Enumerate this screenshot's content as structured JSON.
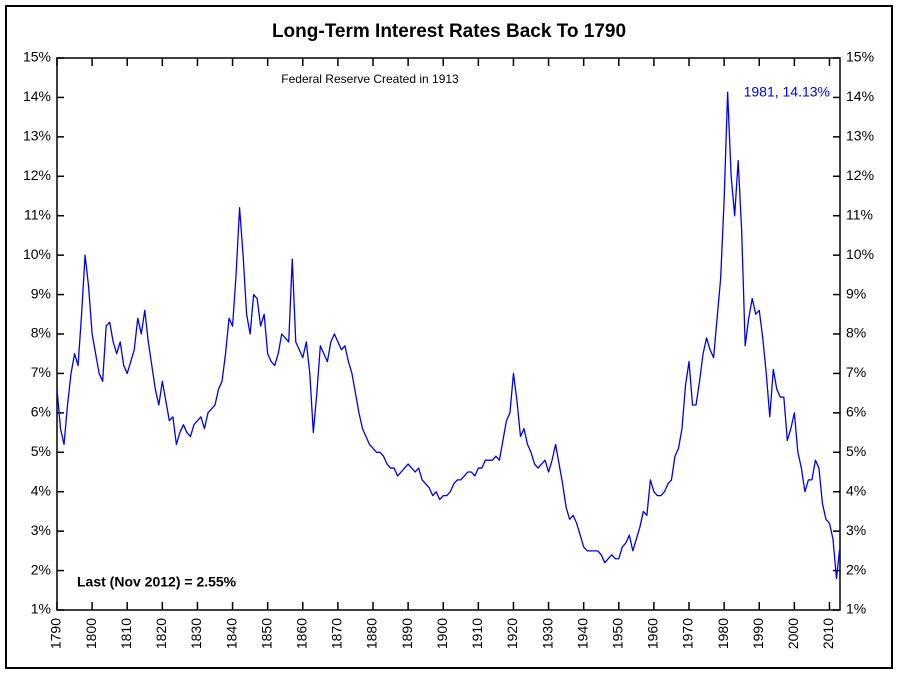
{
  "chart_data": {
    "type": "line",
    "title": "Long-Term Interest Rates Back To 1790",
    "annotations": [
      "Federal Reserve Created in 1913",
      "1981, 14.13%",
      "Last (Nov 2012) = 2.55%"
    ],
    "color": "#0000ee",
    "xlim": [
      1790,
      2013
    ],
    "xticks": [
      1790,
      1800,
      1810,
      1820,
      1830,
      1840,
      1850,
      1860,
      1870,
      1880,
      1890,
      1900,
      1910,
      1920,
      1930,
      1940,
      1950,
      1960,
      1970,
      1980,
      1990,
      2000,
      2010
    ],
    "ylim": [
      1,
      15
    ],
    "yticks": [
      {
        "value": 1,
        "label": "1%"
      },
      {
        "value": 2,
        "label": "2%"
      },
      {
        "value": 3,
        "label": "3%"
      },
      {
        "value": 4,
        "label": "4%"
      },
      {
        "value": 5,
        "label": "5%"
      },
      {
        "value": 6,
        "label": "6%"
      },
      {
        "value": 7,
        "label": "7%"
      },
      {
        "value": 8,
        "label": "8%"
      },
      {
        "value": 9,
        "label": "9%"
      },
      {
        "value": 10,
        "label": "10%"
      },
      {
        "value": 11,
        "label": "11%"
      },
      {
        "value": 12,
        "label": "12%"
      },
      {
        "value": 13,
        "label": "13%"
      },
      {
        "value": 14,
        "label": "14%"
      },
      {
        "value": 15,
        "label": "15%"
      }
    ],
    "x": [
      1790,
      1791,
      1792,
      1793,
      1794,
      1795,
      1796,
      1797,
      1798,
      1799,
      1800,
      1801,
      1802,
      1803,
      1804,
      1805,
      1806,
      1807,
      1808,
      1809,
      1810,
      1811,
      1812,
      1813,
      1814,
      1815,
      1816,
      1817,
      1818,
      1819,
      1820,
      1821,
      1822,
      1823,
      1824,
      1825,
      1826,
      1827,
      1828,
      1829,
      1830,
      1831,
      1832,
      1833,
      1834,
      1835,
      1836,
      1837,
      1838,
      1839,
      1840,
      1841,
      1842,
      1843,
      1844,
      1845,
      1846,
      1847,
      1848,
      1849,
      1850,
      1851,
      1852,
      1853,
      1854,
      1855,
      1856,
      1857,
      1858,
      1859,
      1860,
      1861,
      1862,
      1863,
      1864,
      1865,
      1866,
      1867,
      1868,
      1869,
      1870,
      1871,
      1872,
      1873,
      1874,
      1875,
      1876,
      1877,
      1878,
      1879,
      1880,
      1881,
      1882,
      1883,
      1884,
      1885,
      1886,
      1887,
      1888,
      1889,
      1890,
      1891,
      1892,
      1893,
      1894,
      1895,
      1896,
      1897,
      1898,
      1899,
      1900,
      1901,
      1902,
      1903,
      1904,
      1905,
      1906,
      1907,
      1908,
      1909,
      1910,
      1911,
      1912,
      1913,
      1914,
      1915,
      1916,
      1917,
      1918,
      1919,
      1920,
      1921,
      1922,
      1923,
      1924,
      1925,
      1926,
      1927,
      1928,
      1929,
      1930,
      1931,
      1932,
      1933,
      1934,
      1935,
      1936,
      1937,
      1938,
      1939,
      1940,
      1941,
      1942,
      1943,
      1944,
      1945,
      1946,
      1947,
      1948,
      1949,
      1950,
      1951,
      1952,
      1953,
      1954,
      1955,
      1956,
      1957,
      1958,
      1959,
      1960,
      1961,
      1962,
      1963,
      1964,
      1965,
      1966,
      1967,
      1968,
      1969,
      1970,
      1971,
      1972,
      1973,
      1974,
      1975,
      1976,
      1977,
      1978,
      1979,
      1980,
      1981,
      1982,
      1983,
      1984,
      1985,
      1986,
      1987,
      1988,
      1989,
      1990,
      1991,
      1992,
      1993,
      1994,
      1995,
      1996,
      1997,
      1998,
      1999,
      2000,
      2001,
      2002,
      2003,
      2004,
      2005,
      2006,
      2007,
      2008,
      2009,
      2010,
      2011,
      2012,
      2012.9
    ],
    "values": [
      6.6,
      5.6,
      5.2,
      6.2,
      7.0,
      7.5,
      7.2,
      8.5,
      10.0,
      9.2,
      8.0,
      7.5,
      7.0,
      6.8,
      8.2,
      8.3,
      7.8,
      7.5,
      7.8,
      7.2,
      7.0,
      7.3,
      7.6,
      8.4,
      8.0,
      8.6,
      7.8,
      7.2,
      6.6,
      6.2,
      6.8,
      6.3,
      5.8,
      5.9,
      5.2,
      5.5,
      5.7,
      5.5,
      5.4,
      5.7,
      5.8,
      5.9,
      5.6,
      6.0,
      6.1,
      6.2,
      6.6,
      6.8,
      7.5,
      8.4,
      8.2,
      9.5,
      11.2,
      10.0,
      8.5,
      8.0,
      9.0,
      8.9,
      8.2,
      8.5,
      7.5,
      7.3,
      7.2,
      7.5,
      8.0,
      7.9,
      7.8,
      9.9,
      7.8,
      7.6,
      7.4,
      7.8,
      7.0,
      5.5,
      6.5,
      7.7,
      7.5,
      7.3,
      7.8,
      8.0,
      7.8,
      7.6,
      7.7,
      7.3,
      7.0,
      6.5,
      6.0,
      5.6,
      5.4,
      5.2,
      5.1,
      5.0,
      5.0,
      4.9,
      4.7,
      4.6,
      4.6,
      4.4,
      4.5,
      4.6,
      4.7,
      4.6,
      4.5,
      4.6,
      4.3,
      4.2,
      4.1,
      3.9,
      4.0,
      3.8,
      3.9,
      3.9,
      4.0,
      4.2,
      4.3,
      4.3,
      4.4,
      4.5,
      4.5,
      4.4,
      4.6,
      4.6,
      4.8,
      4.8,
      4.8,
      4.9,
      4.8,
      5.3,
      5.8,
      6.0,
      7.0,
      6.3,
      5.4,
      5.6,
      5.2,
      5.0,
      4.7,
      4.6,
      4.7,
      4.8,
      4.5,
      4.8,
      5.2,
      4.7,
      4.2,
      3.6,
      3.3,
      3.4,
      3.2,
      2.9,
      2.6,
      2.5,
      2.5,
      2.5,
      2.5,
      2.4,
      2.2,
      2.3,
      2.4,
      2.3,
      2.3,
      2.6,
      2.7,
      2.9,
      2.5,
      2.8,
      3.1,
      3.5,
      3.4,
      4.3,
      4.0,
      3.9,
      3.9,
      4.0,
      4.2,
      4.3,
      4.9,
      5.1,
      5.6,
      6.7,
      7.3,
      6.2,
      6.2,
      6.8,
      7.5,
      7.9,
      7.6,
      7.4,
      8.4,
      9.4,
      11.4,
      14.13,
      12.0,
      11.0,
      12.4,
      10.6,
      7.7,
      8.4,
      8.9,
      8.5,
      8.6,
      7.9,
      7.0,
      5.9,
      7.1,
      6.6,
      6.4,
      6.4,
      5.3,
      5.6,
      6.0,
      5.0,
      4.6,
      4.0,
      4.3,
      4.3,
      4.8,
      4.6,
      3.7,
      3.3,
      3.2,
      2.8,
      1.8,
      2.55
    ]
  }
}
